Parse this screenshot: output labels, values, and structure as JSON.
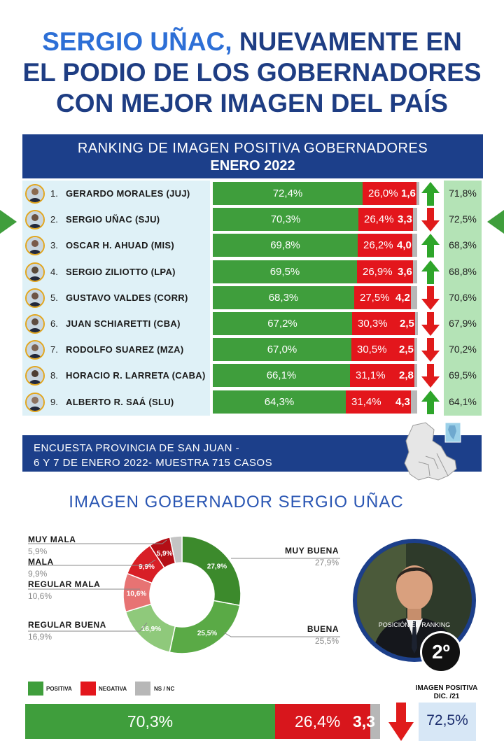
{
  "headline": {
    "highlight": "SERGIO UÑAC,",
    "rest_line1": "NUEVAMENTE EN",
    "line2": "EL PODIO DE LOS GOBERNADORES",
    "line3": "CON MEJOR IMAGEN DEL PAÍS"
  },
  "ranking": {
    "title": "RANKING DE IMAGEN POSITIVA GOBERNADORES",
    "subtitle": "ENERO 2022",
    "rows": [
      {
        "rank": "1.",
        "name": "GERARDO MORALES (JUJ)",
        "pos": 72.4,
        "pos_label": "72,4%",
        "neg": 26.0,
        "neg_label": "26,0%",
        "ns_label": "1,6",
        "trend": "up",
        "prev": "71,8%"
      },
      {
        "rank": "2.",
        "name": "SERGIO UÑAC (SJU)",
        "pos": 70.3,
        "pos_label": "70,3%",
        "neg": 26.4,
        "neg_label": "26,4%",
        "ns_label": "3,3",
        "trend": "down",
        "prev": "72,5%"
      },
      {
        "rank": "3.",
        "name": "OSCAR H. AHUAD (MIS)",
        "pos": 69.8,
        "pos_label": "69,8%",
        "neg": 26.2,
        "neg_label": "26,2%",
        "ns_label": "4,0",
        "trend": "up",
        "prev": "68,3%"
      },
      {
        "rank": "4.",
        "name": "SERGIO ZILIOTTO (LPA)",
        "pos": 69.5,
        "pos_label": "69,5%",
        "neg": 26.9,
        "neg_label": "26,9%",
        "ns_label": "3,6",
        "trend": "up",
        "prev": "68,8%"
      },
      {
        "rank": "5.",
        "name": "GUSTAVO VALDES (CORR)",
        "pos": 68.3,
        "pos_label": "68,3%",
        "neg": 27.5,
        "neg_label": "27,5%",
        "ns_label": "4,2",
        "trend": "down",
        "prev": "70,6%"
      },
      {
        "rank": "6.",
        "name": "JUAN SCHIARETTI (CBA)",
        "pos": 67.2,
        "pos_label": "67,2%",
        "neg": 30.3,
        "neg_label": "30,3%",
        "ns_label": "2,5",
        "trend": "down",
        "prev": "67,9%"
      },
      {
        "rank": "7.",
        "name": "RODOLFO SUAREZ (MZA)",
        "pos": 67.0,
        "pos_label": "67,0%",
        "neg": 30.5,
        "neg_label": "30,5%",
        "ns_label": "2,5",
        "trend": "down",
        "prev": "70,2%"
      },
      {
        "rank": "8.",
        "name": "HORACIO R. LARRETA (CABA)",
        "pos": 66.1,
        "pos_label": "66,1%",
        "neg": 31.1,
        "neg_label": "31,1%",
        "ns_label": "2,8",
        "trend": "down",
        "prev": "69,5%"
      },
      {
        "rank": "9.",
        "name": "ALBERTO R. SAÁ (SLU)",
        "pos": 64.3,
        "pos_label": "64,3%",
        "neg": 31.4,
        "neg_label": "31,4%",
        "ns_label": "4,3",
        "trend": "up",
        "prev": "64,1%"
      }
    ]
  },
  "survey": {
    "line1": "ENCUESTA PROVINCIA DE SAN JUAN -",
    "line2": "6 Y 7 DE ENERO 2022-  MUESTRA 715 CASOS"
  },
  "governor": {
    "title": "IMAGEN GOBERNADOR  SERGIO UÑAC",
    "ranking_label": "POSICIÓN EN RANKING",
    "position": "2º"
  },
  "legend": {
    "positive": "POSITIVA",
    "negative": "NEGATIVA",
    "nsnc": "NS / NC"
  },
  "summary": {
    "positive_label": "70,3%",
    "negative_label": "26,4%",
    "ns_label": "3,3",
    "trend": "down",
    "prev_title_1": "IMAGEN POSITIVA",
    "prev_title_2": "DIC. /21",
    "prev_value": "72,5%"
  },
  "colors": {
    "positive": "#3f9e3c",
    "negative": "#e3161c",
    "nsnc": "#b7b7b7",
    "navy": "#1c3f8a",
    "headline_highlight": "#2d6fd6"
  },
  "chart_data": [
    {
      "type": "bar",
      "title": "RANKING DE IMAGEN POSITIVA GOBERNADORES",
      "subtitle": "ENERO 2022",
      "stacked": true,
      "orientation": "horizontal",
      "categories": [
        "GERARDO MORALES (JUJ)",
        "SERGIO UÑAC (SJU)",
        "OSCAR H. AHUAD (MIS)",
        "SERGIO ZILIOTTO (LPA)",
        "GUSTAVO VALDES (CORR)",
        "JUAN SCHIARETTI (CBA)",
        "RODOLFO SUAREZ (MZA)",
        "HORACIO R. LARRETA (CABA)",
        "ALBERTO R. SAÁ (SLU)"
      ],
      "series": [
        {
          "values": [
            72.4,
            70.3,
            69.8,
            69.5,
            68.3,
            67.2,
            67.0,
            66.1,
            64.3
          ]
        },
        {
          "values": [
            26.0,
            26.4,
            26.2,
            26.9,
            27.5,
            30.3,
            30.5,
            31.1,
            31.4
          ]
        },
        {
          "values": [
            1.6,
            3.3,
            4.0,
            3.6,
            4.2,
            2.5,
            2.5,
            2.8,
            4.3
          ]
        }
      ]
    },
    {
      "type": "pie",
      "donut": true,
      "title": "IMAGEN GOBERNADOR  SERGIO UÑAC",
      "slices": [
        {
          "label": "MUY BUENA",
          "value": 27.9,
          "value_label": "27,9%",
          "color": "#3c8a2c"
        },
        {
          "label": "BUENA",
          "value": 25.5,
          "value_label": "25,5%",
          "color": "#5aaa46"
        },
        {
          "label": "REGULAR BUENA",
          "value": 16.9,
          "value_label": "16,9%",
          "color": "#8fc97b"
        },
        {
          "label": "REGULAR MALA",
          "value": 10.6,
          "value_label": "10,6%",
          "color": "#e77373"
        },
        {
          "label": "MALA",
          "value": 9.9,
          "value_label": "9,9%",
          "color": "#d81f26"
        },
        {
          "label": "MUY MALA",
          "value": 5.9,
          "value_label": "5,9%",
          "color": "#b40f16"
        },
        {
          "label": "NS/NC",
          "value": 3.3,
          "value_label": "",
          "color": "#c4c4c4"
        }
      ]
    },
    {
      "type": "bar",
      "stacked": true,
      "orientation": "horizontal",
      "categories": [
        "SERGIO UÑAC"
      ],
      "series": [
        {
          "name": "POSITIVA",
          "values": [
            70.3
          ]
        },
        {
          "name": "NEGATIVA",
          "values": [
            26.4
          ]
        },
        {
          "name": "NS / NC",
          "values": [
            3.3
          ]
        }
      ]
    }
  ]
}
